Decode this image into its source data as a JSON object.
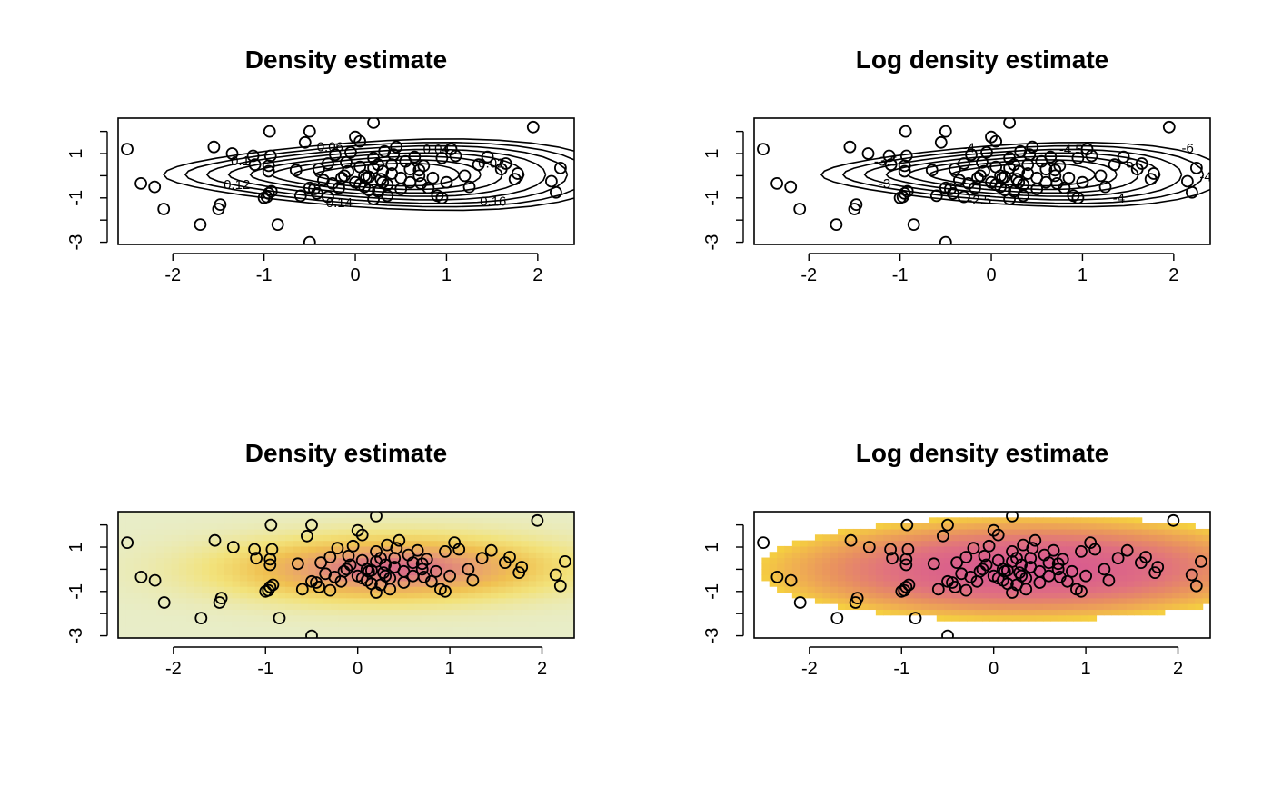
{
  "chart_data": [
    {
      "panel": "top-left",
      "type": "contour",
      "title": "Density estimate",
      "xlabel": "",
      "ylabel": "",
      "xlim": [
        -2.6,
        2.4
      ],
      "ylim": [
        -3.1,
        2.6
      ],
      "x_ticks": [
        -2,
        -1,
        0,
        1,
        2
      ],
      "y_ticks": [
        -3,
        -1,
        1
      ],
      "contour_levels": [
        0.02,
        0.04,
        0.06,
        0.08,
        0.1,
        0.12,
        0.14,
        0.16
      ],
      "contour_labels": [
        "0.02",
        "0.04",
        "0.06",
        "0.1",
        "0.12",
        "0.14",
        "0.16"
      ],
      "points_shared": true
    },
    {
      "panel": "top-right",
      "type": "contour",
      "title": "Log density estimate",
      "xlabel": "",
      "ylabel": "",
      "xlim": [
        -2.6,
        2.4
      ],
      "ylim": [
        -3.1,
        2.6
      ],
      "x_ticks": [
        -2,
        -1,
        0,
        1,
        2
      ],
      "y_ticks": [
        -3,
        -1,
        1
      ],
      "contour_levels": [
        -5,
        -4.5,
        -4,
        -3.5,
        -3,
        -2.5,
        -2
      ],
      "contour_labels": [
        "-5",
        "-4.5",
        "-4",
        "-3.5",
        "-3",
        "-2.5",
        "-4",
        "-4.5",
        "-6"
      ],
      "points_shared": true
    },
    {
      "panel": "bottom-left",
      "type": "heatmap",
      "title": "Density estimate",
      "xlabel": "",
      "ylabel": "",
      "xlim": [
        -2.6,
        2.35
      ],
      "ylim": [
        -3.1,
        2.6
      ],
      "x_ticks": [
        -2,
        -1,
        0,
        1,
        2
      ],
      "y_ticks": [
        -3,
        -1,
        1
      ],
      "colormap": [
        "#e8edc8",
        "#f2e27a",
        "#f0c050",
        "#e8a070",
        "#d86a88"
      ],
      "points_shared": true
    },
    {
      "panel": "bottom-right",
      "type": "heatmap",
      "title": "Log density estimate",
      "xlabel": "",
      "ylabel": "",
      "xlim": [
        -2.6,
        2.35
      ],
      "ylim": [
        -3.1,
        2.6
      ],
      "x_ticks": [
        -2,
        -1,
        0,
        1,
        2
      ],
      "y_ticks": [
        -3,
        -1,
        1
      ],
      "colormap": [
        "#f5d040",
        "#f0b050",
        "#e89060",
        "#e07080",
        "#d85a90"
      ],
      "points_shared": true
    }
  ],
  "points": [
    [
      -2.5,
      1.2
    ],
    [
      -2.35,
      -0.35
    ],
    [
      -2.2,
      -0.5
    ],
    [
      -2.1,
      -1.5
    ],
    [
      -1.7,
      -2.2
    ],
    [
      -1.5,
      -1.5
    ],
    [
      -1.48,
      -1.3
    ],
    [
      -1.55,
      1.3
    ],
    [
      -1.35,
      1.0
    ],
    [
      -1.12,
      0.9
    ],
    [
      -1.1,
      0.5
    ],
    [
      -1.0,
      -1.0
    ],
    [
      -0.97,
      -0.95
    ],
    [
      -0.95,
      -0.8
    ],
    [
      -0.92,
      -0.7
    ],
    [
      -0.95,
      0.2
    ],
    [
      -0.95,
      0.45
    ],
    [
      -0.93,
      0.9
    ],
    [
      -0.94,
      2.0
    ],
    [
      -0.85,
      -2.2
    ],
    [
      -0.65,
      0.25
    ],
    [
      -0.6,
      -0.9
    ],
    [
      -0.55,
      1.5
    ],
    [
      -0.5,
      -0.55
    ],
    [
      -0.45,
      -0.6
    ],
    [
      -0.42,
      -0.8
    ],
    [
      -0.35,
      -0.2
    ],
    [
      -0.3,
      0.55
    ],
    [
      -0.22,
      0.95
    ],
    [
      -0.18,
      -0.55
    ],
    [
      -0.12,
      0.0
    ],
    [
      -0.08,
      0.2
    ],
    [
      -0.1,
      0.6
    ],
    [
      -0.05,
      1.05
    ],
    [
      0.0,
      1.75
    ],
    [
      0.05,
      1.55
    ],
    [
      0.0,
      -0.3
    ],
    [
      0.05,
      -0.4
    ],
    [
      0.1,
      -0.5
    ],
    [
      0.12,
      -0.1
    ],
    [
      0.15,
      -0.65
    ],
    [
      0.2,
      0.35
    ],
    [
      0.2,
      0.8
    ],
    [
      0.25,
      0.5
    ],
    [
      0.28,
      -0.15
    ],
    [
      0.3,
      -0.3
    ],
    [
      0.32,
      1.1
    ],
    [
      0.35,
      -0.9
    ],
    [
      0.35,
      -0.4
    ],
    [
      0.4,
      0.5
    ],
    [
      0.45,
      1.3
    ],
    [
      0.5,
      -0.1
    ],
    [
      0.55,
      0.65
    ],
    [
      0.6,
      0.3
    ],
    [
      0.65,
      0.85
    ],
    [
      0.7,
      0.25
    ],
    [
      0.7,
      0.0
    ],
    [
      0.72,
      -0.35
    ],
    [
      0.75,
      0.45
    ],
    [
      0.8,
      -0.55
    ],
    [
      0.9,
      -0.9
    ],
    [
      0.95,
      -1.0
    ],
    [
      0.95,
      0.8
    ],
    [
      1.05,
      1.2
    ],
    [
      1.1,
      0.9
    ],
    [
      1.2,
      0.0
    ],
    [
      1.25,
      -0.5
    ],
    [
      1.35,
      0.5
    ],
    [
      1.45,
      0.85
    ],
    [
      1.6,
      0.3
    ],
    [
      1.65,
      0.55
    ],
    [
      1.75,
      -0.15
    ],
    [
      1.78,
      0.1
    ],
    [
      1.95,
      2.2
    ],
    [
      2.15,
      -0.25
    ],
    [
      2.2,
      -0.75
    ],
    [
      2.25,
      0.35
    ],
    [
      0.2,
      2.4
    ],
    [
      0.3,
      0.2
    ],
    [
      0.15,
      -0.05
    ],
    [
      -0.25,
      -0.35
    ],
    [
      -0.3,
      -0.95
    ],
    [
      0.1,
      0.0
    ],
    [
      0.6,
      -0.3
    ],
    [
      0.4,
      0.1
    ],
    [
      0.2,
      -1.05
    ],
    [
      0.5,
      -0.6
    ],
    [
      -0.15,
      -0.1
    ],
    [
      -0.4,
      0.3
    ],
    [
      0.85,
      -0.1
    ],
    [
      1.0,
      -0.3
    ],
    [
      -0.5,
      2.0
    ],
    [
      0.25,
      -0.7
    ],
    [
      0.05,
      0.4
    ],
    [
      -0.5,
      -3.0
    ],
    [
      0.42,
      0.95
    ]
  ]
}
